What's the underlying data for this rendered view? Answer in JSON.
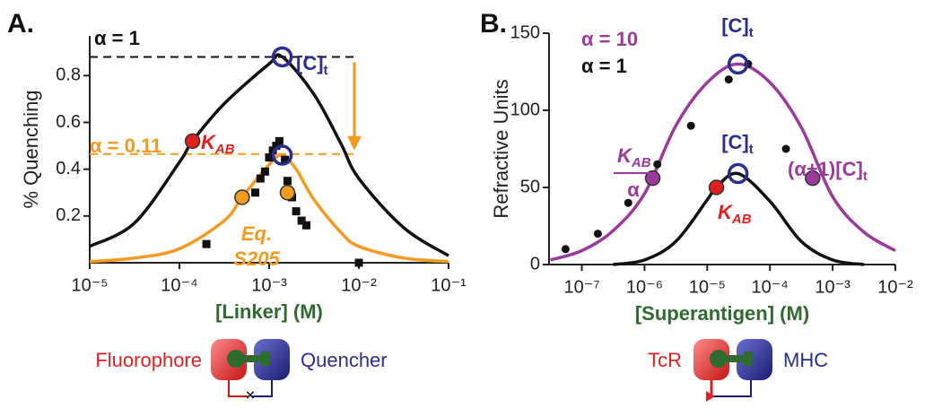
{
  "chart_data": [
    {
      "type": "line",
      "panel": "A.",
      "xlabel": "[Linker] (M)",
      "ylabel": "% Quenching",
      "xscale": "log",
      "xlim": [
        1e-05,
        0.1
      ],
      "ylim": [
        0,
        0.97
      ],
      "xticks": [
        {
          "value": 1e-05,
          "label": "10⁻⁵"
        },
        {
          "value": 0.0001,
          "label": "10⁻⁴"
        },
        {
          "value": 0.001,
          "label": "10⁻³"
        },
        {
          "value": 0.01,
          "label": "10⁻²"
        },
        {
          "value": 0.1,
          "label": "10⁻¹"
        }
      ],
      "yticks": [
        0.2,
        0.4,
        0.6,
        0.8
      ],
      "reference_lines": [
        {
          "value": 0.88,
          "color": "#111111"
        },
        {
          "value": 0.465,
          "color": "#f39a21"
        }
      ],
      "series": [
        {
          "mode": "line",
          "color": "#111111",
          "x": [
            1e-05,
            3.16e-05,
            0.0001,
            0.00014,
            0.000316,
            0.001,
            0.0014,
            0.00316,
            0.0063,
            0.01,
            0.0316,
            0.1
          ],
          "values": [
            0.07,
            0.17,
            0.43,
            0.52,
            0.68,
            0.85,
            0.88,
            0.72,
            0.51,
            0.36,
            0.15,
            0.03
          ]
        },
        {
          "mode": "line",
          "color": "#f39a21",
          "x": [
            1e-05,
            3.16e-05,
            0.0001,
            0.000316,
            0.0005,
            0.001,
            0.0014,
            0.002,
            0.00316,
            0.0063,
            0.01,
            0.0316,
            0.1
          ],
          "values": [
            0.005,
            0.02,
            0.06,
            0.18,
            0.28,
            0.42,
            0.46,
            0.4,
            0.27,
            0.13,
            0.07,
            0.02,
            0.005
          ]
        },
        {
          "mode": "markers",
          "marker": "square",
          "color": "#111111",
          "x": [
            0.0002,
            0.0007,
            0.0008,
            0.0009,
            0.001,
            0.0011,
            0.0012,
            0.0013,
            0.0015,
            0.0016,
            0.0018,
            0.002,
            0.0023,
            0.0026,
            0.01
          ],
          "values": [
            0.08,
            0.3,
            0.36,
            0.39,
            0.45,
            0.48,
            0.5,
            0.52,
            0.44,
            0.35,
            0.28,
            0.22,
            0.18,
            0.16,
            0
          ]
        },
        {
          "mode": "markers",
          "marker": "circle",
          "color": "#f39a21",
          "x": [
            0.0005,
            0.0016
          ],
          "values": [
            0.28,
            0.3
          ]
        },
        {
          "mode": "markers",
          "marker": "circle",
          "color": "#e0201f",
          "x": [
            0.00014
          ],
          "values": [
            0.52
          ]
        },
        {
          "mode": "markers",
          "marker": "ring",
          "color": "#2a2f8f",
          "x": [
            0.0014,
            0.0014
          ],
          "values": [
            0.88,
            0.46
          ]
        }
      ],
      "annotations": [
        {
          "text": "α = 1",
          "color": "#111111"
        },
        {
          "text": "α = 0.11",
          "color": "#f39a21"
        },
        {
          "text": "K",
          "sub": "AB",
          "color": "#e0201f"
        },
        {
          "text": "[C]",
          "sub": "t",
          "color": "#2a2f8f"
        },
        {
          "lines": [
            "Eq.",
            "S205"
          ],
          "color": "#f39a21"
        }
      ],
      "schematic": {
        "left": "Fluorophore",
        "right": "Quencher"
      }
    },
    {
      "type": "line",
      "panel": "B.",
      "xlabel": "[Superantigen] (M)",
      "ylabel": "Refractive Units",
      "xscale": "log",
      "xlim": [
        3e-08,
        0.01
      ],
      "ylim": [
        0,
        150
      ],
      "xticks": [
        {
          "value": 1e-07,
          "label": "10⁻⁷"
        },
        {
          "value": 1e-06,
          "label": "10⁻⁶"
        },
        {
          "value": 1e-05,
          "label": "10⁻⁵"
        },
        {
          "value": 0.0001,
          "label": "10⁻⁴"
        },
        {
          "value": 0.001,
          "label": "10⁻³"
        },
        {
          "value": 0.01,
          "label": "10⁻²"
        }
      ],
      "yticks": [
        0,
        50,
        100,
        150
      ],
      "series": [
        {
          "mode": "line",
          "color": "#9c3a9c",
          "x": [
            3.16e-08,
            1e-07,
            3.16e-07,
            1e-06,
            3.16e-06,
            1e-05,
            3.1e-05,
            0.0001,
            0.000316,
            0.001,
            0.00316,
            0.01
          ],
          "values": [
            3,
            9,
            22,
            46,
            90,
            118,
            130,
            118,
            89,
            44,
            21,
            9
          ]
        },
        {
          "mode": "line",
          "color": "#111111",
          "x": [
            3.16e-07,
            1e-06,
            3.16e-06,
            1e-05,
            1.4e-05,
            3.1e-05,
            0.0001,
            0.000316,
            0.001,
            0.00316
          ],
          "values": [
            0,
            3,
            15,
            42,
            50,
            59,
            41,
            15,
            3,
            0
          ]
        },
        {
          "mode": "markers",
          "marker": "dot",
          "color": "#111111",
          "x": [
            5.5e-08,
            1.8e-07,
            5.5e-07,
            1.6e-06,
            5.5e-06,
            2.2e-05,
            4.5e-05,
            0.00018
          ],
          "values": [
            10,
            20,
            40,
            65,
            90,
            120,
            130,
            75
          ]
        },
        {
          "mode": "markers",
          "marker": "circle",
          "color": "#9c3a9c",
          "x": [
            1.35e-06,
            0.00048
          ],
          "values": [
            56,
            56
          ]
        },
        {
          "mode": "markers",
          "marker": "circle",
          "color": "#e0201f",
          "x": [
            1.4e-05
          ],
          "values": [
            50
          ]
        },
        {
          "mode": "markers",
          "marker": "ring",
          "color": "#2a2f8f",
          "x": [
            3.1e-05,
            3.1e-05
          ],
          "values": [
            130,
            59
          ]
        }
      ],
      "annotations": [
        {
          "text": "α = 10",
          "color": "#9c3a9c"
        },
        {
          "text": "α = 1",
          "color": "#111111"
        },
        {
          "text": "[C]",
          "sub": "t",
          "color": "#2a2f8f"
        },
        {
          "text": "[C]",
          "sub": "t",
          "color": "#2a2f8f"
        },
        {
          "text": "K",
          "sub": "AB",
          "color": "#e0201f"
        },
        {
          "numerator": {
            "text": "K",
            "sub": "AB"
          },
          "denominator": "α",
          "color": "#9c3a9c"
        },
        {
          "text": "(α+1)[C]",
          "sub": "t",
          "color": "#9c3a9c"
        }
      ],
      "schematic": {
        "left": "TcR",
        "right": "MHC"
      }
    }
  ]
}
